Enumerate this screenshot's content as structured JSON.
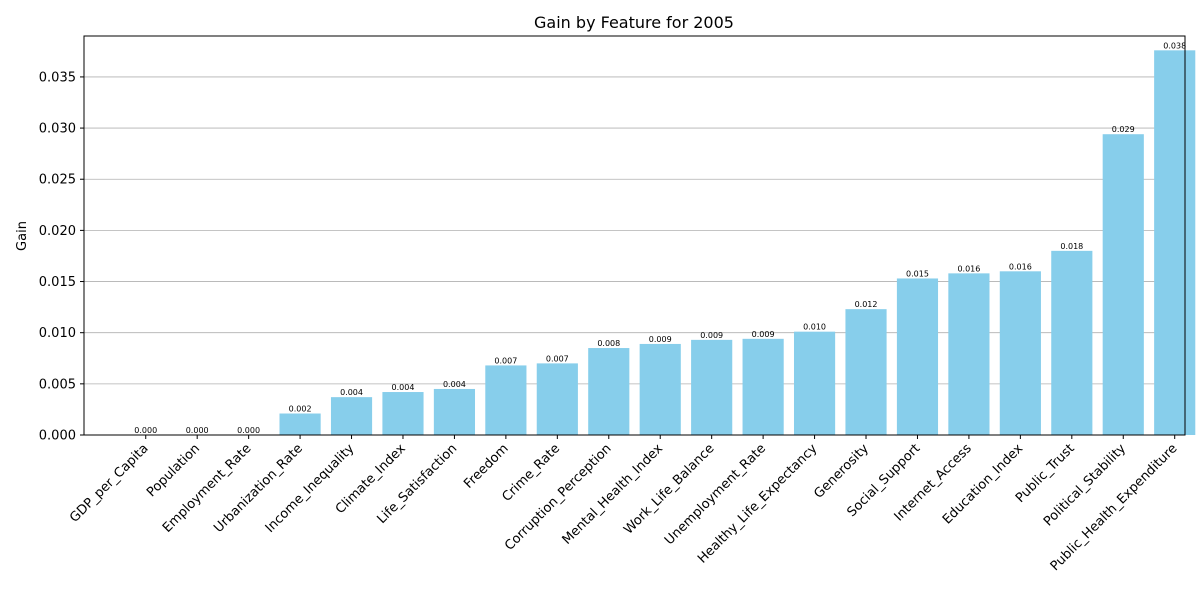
{
  "chart_data": {
    "type": "bar",
    "title": "Gain by Feature for 2005",
    "xlabel": "",
    "ylabel": "Gain",
    "ylim": [
      0,
      0.039
    ],
    "yticks": [
      0.0,
      0.005,
      0.01,
      0.015,
      0.02,
      0.025,
      0.03,
      0.035
    ],
    "ytick_labels": [
      "0.000",
      "0.005",
      "0.010",
      "0.015",
      "0.020",
      "0.025",
      "0.030",
      "0.035"
    ],
    "grid": "y",
    "bar_color": "#87CEEB",
    "categories": [
      "GDP_per_Capita",
      "Population",
      "Employment_Rate",
      "Urbanization_Rate",
      "Income_Inequality",
      "Climate_Index",
      "Life_Satisfaction",
      "Freedom",
      "Crime_Rate",
      "Corruption_Perception",
      "Mental_Health_Index",
      "Work_Life_Balance",
      "Unemployment_Rate",
      "Healthy_Life_Expectancy",
      "Generosity",
      "Social_Support",
      "Internet_Access",
      "Education_Index",
      "Public_Trust",
      "Political_Stability",
      "Public_Health_Expenditure"
    ],
    "values": [
      0.0,
      0.0,
      0.0,
      0.0021,
      0.0037,
      0.0042,
      0.0045,
      0.0068,
      0.007,
      0.0085,
      0.0089,
      0.0093,
      0.0094,
      0.0101,
      0.0123,
      0.0153,
      0.0158,
      0.016,
      0.018,
      0.0294,
      0.0376
    ],
    "value_labels": [
      "0.000",
      "0.000",
      "0.000",
      "0.002",
      "0.004",
      "0.004",
      "0.004",
      "0.007",
      "0.007",
      "0.008",
      "0.009",
      "0.009",
      "0.009",
      "0.010",
      "0.012",
      "0.015",
      "0.016",
      "0.016",
      "0.018",
      "0.029",
      "0.038"
    ]
  }
}
